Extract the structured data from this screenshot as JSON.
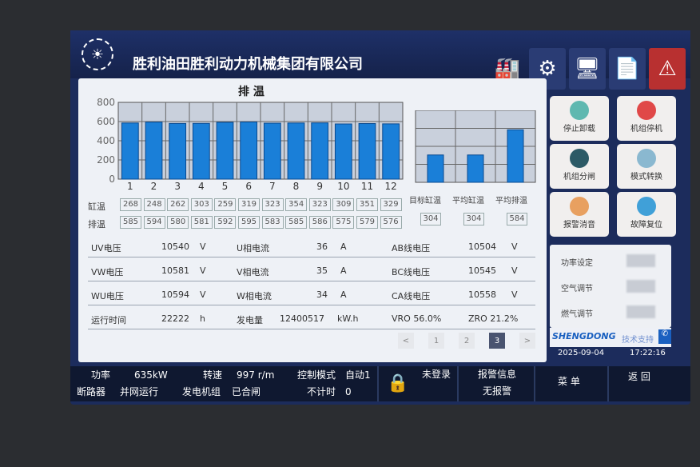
{
  "header": {
    "title": "胜利油田胜利动力机械集团有限公司",
    "icons": [
      "factory-icon",
      "gear-icon",
      "computer-icon",
      "report-icon",
      "warning-icon"
    ]
  },
  "chart_data": [
    {
      "type": "bar",
      "title": "排 温",
      "categories": [
        "1",
        "2",
        "3",
        "4",
        "5",
        "6",
        "7",
        "8",
        "9",
        "10",
        "11",
        "12"
      ],
      "values": [
        585,
        594,
        580,
        581,
        592,
        595,
        583,
        585,
        586,
        575,
        579,
        576
      ],
      "ylim": [
        0,
        800
      ],
      "yticks": [
        "0",
        "200",
        "400",
        "600",
        "800"
      ],
      "grid": true,
      "color": "#1a7fd8"
    },
    {
      "type": "bar",
      "categories": [
        "目标缸温",
        "平均缸温",
        "平均排温"
      ],
      "values": [
        304,
        304,
        584
      ],
      "ylim": [
        0,
        800
      ],
      "grid": true,
      "color": "#1a7fd8"
    }
  ],
  "table": {
    "cyl_label": "缸温",
    "exh_label": "排温",
    "cyl": [
      "268",
      "248",
      "262",
      "303",
      "259",
      "319",
      "323",
      "354",
      "323",
      "309",
      "351",
      "329"
    ],
    "exh": [
      "585",
      "594",
      "580",
      "581",
      "592",
      "595",
      "583",
      "585",
      "586",
      "575",
      "579",
      "576"
    ],
    "avg": [
      "304",
      "304",
      "584"
    ]
  },
  "rows": [
    [
      "UV电压",
      "10540",
      "V",
      "U相电流",
      "36",
      "A",
      "AB线电压",
      "10504",
      "V"
    ],
    [
      "VW电压",
      "10581",
      "V",
      "V相电流",
      "35",
      "A",
      "BC线电压",
      "10545",
      "V"
    ],
    [
      "WU电压",
      "10594",
      "V",
      "W相电流",
      "34",
      "A",
      "CA线电压",
      "10558",
      "V"
    ]
  ],
  "runtime": {
    "label": "运行时间",
    "value": "22222",
    "unit": "h",
    "energy_label": "发电量",
    "energy": "12400517",
    "energy_unit": "kW.h",
    "vro": "VRO  56.0%",
    "zro": "ZRO  21.2%"
  },
  "pager": {
    "prev": "<",
    "pages": [
      "1",
      "2",
      "3"
    ],
    "current": "3",
    "next": ">"
  },
  "buttons": [
    {
      "label": "停止卸载",
      "color": "#5fb8b0"
    },
    {
      "label": "机组停机",
      "color": "#e04848"
    },
    {
      "label": "机组分闸",
      "color": "#2c5a66"
    },
    {
      "label": "模式转换",
      "color": "#8ab8d0"
    },
    {
      "label": "报警消音",
      "color": "#e8a060"
    },
    {
      "label": "故障复位",
      "color": "#40a0d8"
    }
  ],
  "settings": [
    "功率设定",
    "空气调节",
    "燃气调节"
  ],
  "brand": {
    "logo": "SHENGDONG",
    "support": "技术支持"
  },
  "date": "2025-09-04",
  "time": "17:22:16",
  "status": {
    "power_label": "功率",
    "power": "635kW",
    "speed_label": "转速",
    "speed": "997 r/m",
    "mode_label": "控制模式",
    "mode": "自动1",
    "breaker_label": "断路器",
    "breaker": "并网运行",
    "genset_label": "发电机组",
    "genset": "已合闸",
    "timer_label": "不计时",
    "timer": "0",
    "login": "未登录",
    "alarm_label": "报警信息",
    "alarm": "无报警",
    "menu": "菜 单",
    "back": "返 回"
  }
}
